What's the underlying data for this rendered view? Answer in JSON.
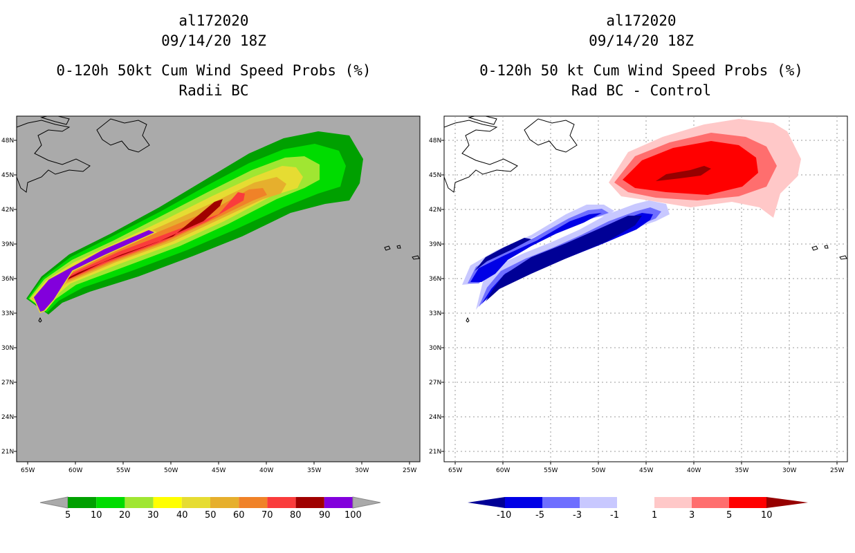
{
  "left_panel": {
    "title_line1": "al172020",
    "title_line2": "09/14/20 18Z",
    "title_line3": "0-120h 50kt Cum Wind Speed Probs (%)",
    "title_line4": "Radii BC",
    "background_color": "#aaaaaa",
    "colorbar": {
      "colors": [
        "#00a000",
        "#00dc00",
        "#a0e632",
        "#e6dc32",
        "#e6dc32",
        "#e6af2d",
        "#f08228",
        "#fa3c3c",
        "#a00000",
        "#8200dc"
      ],
      "labels": [
        "5",
        "10",
        "20",
        "30",
        "40",
        "50",
        "60",
        "70",
        "80",
        "90",
        "100"
      ]
    }
  },
  "right_panel": {
    "title_line1": "al172020",
    "title_line2": "09/14/20 18Z",
    "title_line3": "0-120h 50 kt Cum Wind Speed Probs (%)",
    "title_line4": "Rad BC - Control",
    "background_color": "#ffffff",
    "colorbar": {
      "colors": [
        "#0000e6",
        "#6e6eff",
        "#c8c8ff",
        "#ffffff",
        "#ffc8c8",
        "#ff6e6e",
        "#ff0000"
      ],
      "end_low_color": "#000096",
      "end_high_color": "#960000",
      "labels": [
        "-10",
        "-5",
        "-3",
        "-1",
        "1",
        "3",
        "5",
        "10"
      ]
    }
  },
  "axes": {
    "lat_labels": [
      "48N",
      "45N",
      "42N",
      "39N",
      "36N",
      "33N",
      "30N",
      "27N",
      "24N",
      "21N"
    ],
    "lon_labels": [
      "65W",
      "60W",
      "55W",
      "50W",
      "45W",
      "40W",
      "35W",
      "30W",
      "25W"
    ]
  }
}
